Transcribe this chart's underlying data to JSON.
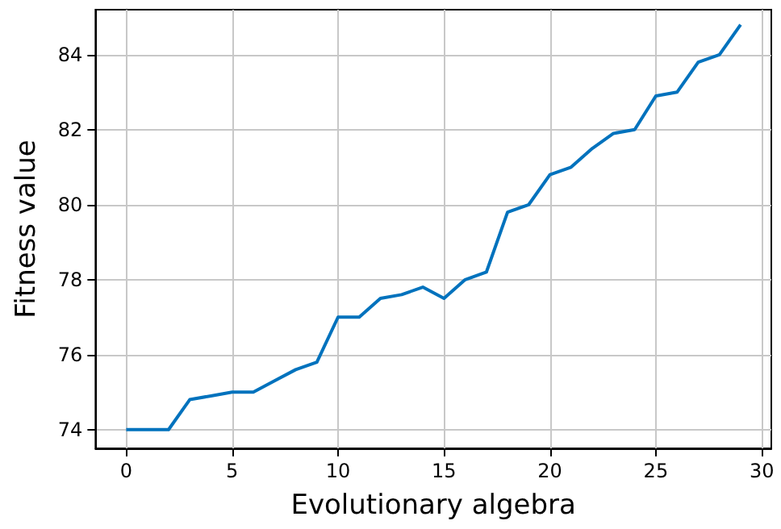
{
  "chart_data": {
    "type": "line",
    "xlabel": "Evolutionary algebra",
    "ylabel": "Fitness value",
    "x": [
      0,
      1,
      2,
      3,
      4,
      5,
      6,
      7,
      8,
      9,
      10,
      11,
      12,
      13,
      14,
      15,
      16,
      17,
      18,
      19,
      20,
      21,
      22,
      23,
      24,
      25,
      26,
      27,
      28,
      29
    ],
    "series": [
      {
        "color": "#0072bd",
        "values": [
          74,
          74,
          74,
          74.8,
          74.9,
          75,
          75,
          75.3,
          75.6,
          75.8,
          77,
          77,
          77.5,
          77.6,
          77.8,
          77.5,
          78,
          78.2,
          79.8,
          80,
          80.8,
          81,
          81.5,
          81.9,
          82,
          82.9,
          83,
          83.8,
          84,
          84.8
        ]
      }
    ],
    "xlim": [
      -1.45,
      30.45
    ],
    "xticks": [
      0,
      5,
      10,
      15,
      20,
      25,
      30
    ],
    "ylim": [
      73.5,
      85.2
    ],
    "yticks": [
      74,
      76,
      78,
      80,
      82,
      84
    ],
    "grid": true,
    "marker": "none",
    "line_style": "solid"
  }
}
